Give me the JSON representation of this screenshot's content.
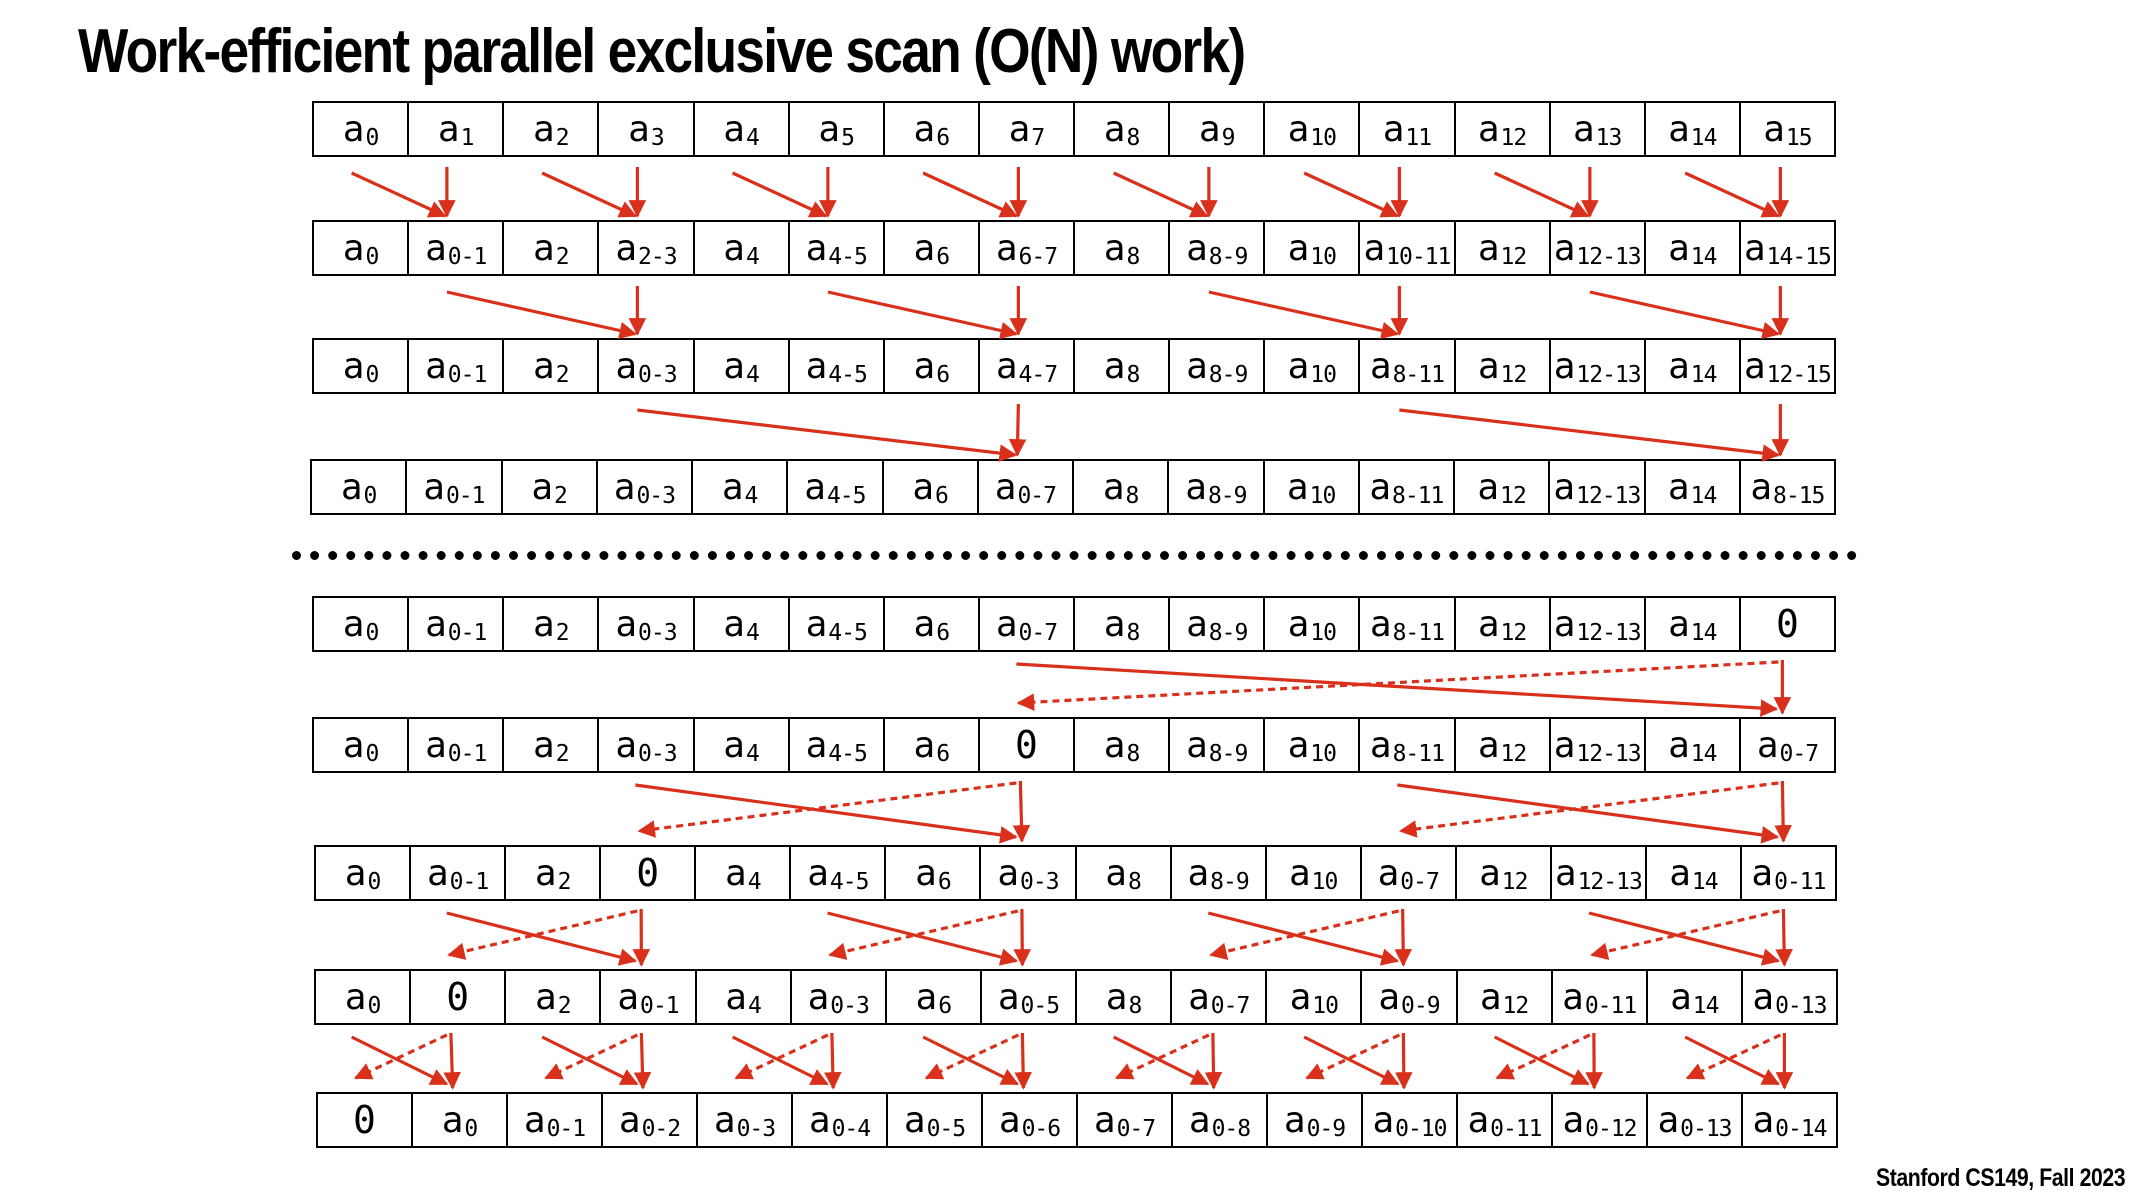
{
  "slide": {
    "title": "Work-efficient parallel exclusive scan (O(N) work)",
    "footer": "Stanford CS149, Fall 2023"
  },
  "colors": {
    "arrow": "#d9301c",
    "text": "#000000",
    "cell_border": "#000000"
  },
  "upsweep_rows": [
    [
      "a|0",
      "a|1",
      "a|2",
      "a|3",
      "a|4",
      "a|5",
      "a|6",
      "a|7",
      "a|8",
      "a|9",
      "a|10",
      "a|11",
      "a|12",
      "a|13",
      "a|14",
      "a|15"
    ],
    [
      "a|0",
      "a|0-1",
      "a|2",
      "a|2-3",
      "a|4",
      "a|4-5",
      "a|6",
      "a|6-7",
      "a|8",
      "a|8-9",
      "a|10",
      "a|10-11",
      "a|12",
      "a|12-13",
      "a|14",
      "a|14-15"
    ],
    [
      "a|0",
      "a|0-1",
      "a|2",
      "a|0-3",
      "a|4",
      "a|4-5",
      "a|6",
      "a|4-7",
      "a|8",
      "a|8-9",
      "a|10",
      "a|8-11",
      "a|12",
      "a|12-13",
      "a|14",
      "a|12-15"
    ],
    [
      "a|0",
      "a|0-1",
      "a|2",
      "a|0-3",
      "a|4",
      "a|4-5",
      "a|6",
      "a|0-7",
      "a|8",
      "a|8-9",
      "a|10",
      "a|8-11",
      "a|12",
      "a|12-13",
      "a|14",
      "a|8-15"
    ]
  ],
  "downsweep_rows": [
    [
      "a|0",
      "a|0-1",
      "a|2",
      "a|0-3",
      "a|4",
      "a|4-5",
      "a|6",
      "a|0-7",
      "a|8",
      "a|8-9",
      "a|10",
      "a|8-11",
      "a|12",
      "a|12-13",
      "a|14",
      "0"
    ],
    [
      "a|0",
      "a|0-1",
      "a|2",
      "a|0-3",
      "a|4",
      "a|4-5",
      "a|6",
      "0",
      "a|8",
      "a|8-9",
      "a|10",
      "a|8-11",
      "a|12",
      "a|12-13",
      "a|14",
      "a|0-7"
    ],
    [
      "a|0",
      "a|0-1",
      "a|2",
      "0",
      "a|4",
      "a|4-5",
      "a|6",
      "a|0-3",
      "a|8",
      "a|8-9",
      "a|10",
      "a|0-7",
      "a|12",
      "a|12-13",
      "a|14",
      "a|0-11"
    ],
    [
      "a|0",
      "0",
      "a|2",
      "a|0-1",
      "a|4",
      "a|0-3",
      "a|6",
      "a|0-5",
      "a|8",
      "a|0-7",
      "a|10",
      "a|0-9",
      "a|12",
      "a|0-11",
      "a|14",
      "a|0-13"
    ],
    [
      "0",
      "a|0",
      "a|0-1",
      "a|0-2",
      "a|0-3",
      "a|0-4",
      "a|0-5",
      "a|0-6",
      "a|0-7",
      "a|0-8",
      "a|0-9",
      "a|0-10",
      "a|0-11",
      "a|0-12",
      "a|0-13",
      "a|0-14"
    ]
  ]
}
